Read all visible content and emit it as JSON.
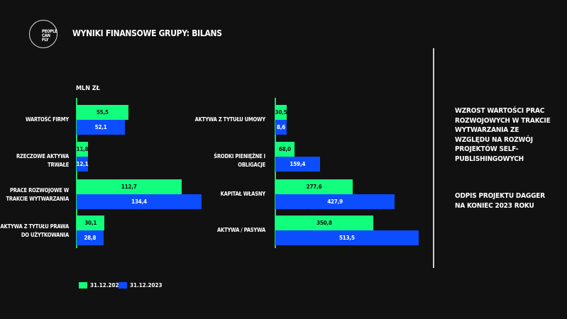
{
  "header": {
    "title": "WYNIKI FINANSOWE GRUPY: BILANS",
    "logo_text": "PEOPLE CAN FLY"
  },
  "chart_data": [
    {
      "type": "bar",
      "orientation": "horizontal",
      "unit_label": "MLN ZŁ",
      "categories": [
        "WARTOŚĆ FIRMY",
        "RZECZOWE AKTYWA TRWAŁE",
        "PRACE ROZWOJOWE W TRAKCIE WYTWARZANIA",
        "AKTYWA Z TYTUŁU PRAWA DO UŻYTKOWANIA"
      ],
      "series": [
        {
          "name": "31.12.2022",
          "values": [
            55.5,
            11.8,
            112.7,
            30.1
          ],
          "labels": [
            "55,5",
            "11,8",
            "112,7",
            "30,1"
          ],
          "color": "#12ff7e"
        },
        {
          "name": "31.12.2023",
          "values": [
            52.1,
            12.1,
            134.4,
            28.8
          ],
          "labels": [
            "52,1",
            "12,1",
            "134,4",
            "28,8"
          ],
          "color": "#0b4dff"
        }
      ]
    },
    {
      "type": "bar",
      "orientation": "horizontal",
      "categories": [
        "AKTYWA Z TYTUŁU UMOWY",
        "ŚRODKI PIENIĘŻNE I OBLIGACJE",
        "KAPITAŁ WŁASNY",
        "AKTYWA / PASYWA"
      ],
      "series": [
        {
          "name": "31.12.2022",
          "values": [
            30.5,
            68.0,
            277.6,
            350.8
          ],
          "labels": [
            "30,5",
            "68,0",
            "277,6",
            "350,8"
          ],
          "color": "#12ff7e"
        },
        {
          "name": "31.12.2023",
          "values": [
            8.6,
            159.4,
            427.9,
            513.5
          ],
          "labels": [
            "8,6",
            "159,4",
            "427,9",
            "513,5"
          ],
          "color": "#0b4dff"
        }
      ]
    }
  ],
  "legend": [
    "31.12.2022",
    "31.12.2023"
  ],
  "notes": [
    "WZROST WARTOŚCI PRAC ROZWOJOWYCH W TRAKCIE WYTWARZANIA ZE WZGLĘDU NA ROZWÓJ PROJEKTÓW SELF-PUBLISHINGOWYCH",
    "ODPIS PROJEKTU DAGGER NA KONIEC 2023 ROKU"
  ]
}
